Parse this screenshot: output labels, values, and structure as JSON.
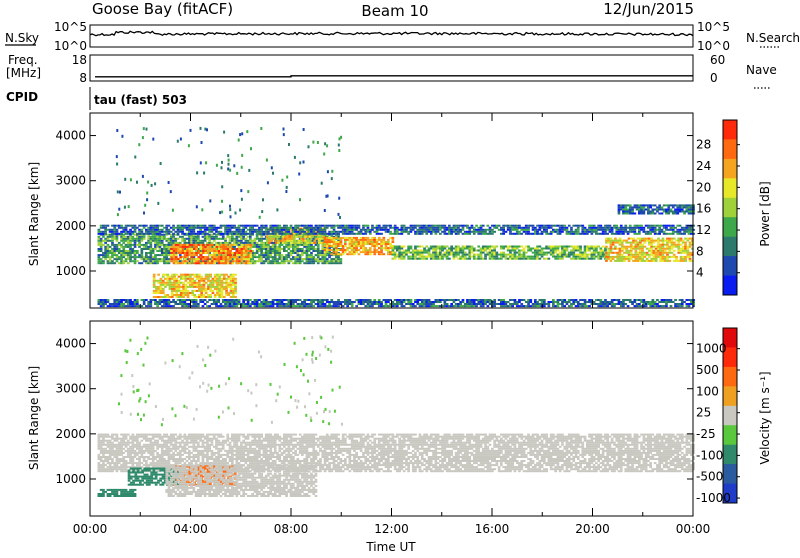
{
  "header": {
    "site": "Goose Bay (fitACF)",
    "beam": "Beam 10",
    "date": "12/Jun/2015"
  },
  "chart_data": [
    {
      "type": "line",
      "name": "sky-noise-panel",
      "left_label": "N.Sky",
      "right_label": "N.Search",
      "left_ticks": [
        "10^5",
        "10^0"
      ],
      "right_ticks": [
        "10^5",
        "10^0"
      ],
      "series": [
        {
          "name": "N.Sky",
          "style": "solid"
        },
        {
          "name": "N.Search",
          "style": "dotted"
        }
      ]
    },
    {
      "type": "line",
      "name": "freq-nave-panel",
      "left_label": "Freq.",
      "left_unit": "[MHz]",
      "right_label": "Nave",
      "left_ticks": [
        "18",
        "8"
      ],
      "right_ticks": [
        "60",
        "0"
      ],
      "freq_value_mhz": 10
    },
    {
      "type": "text",
      "name": "cpid-panel",
      "label": "CPID",
      "value": "tau (fast) 503"
    },
    {
      "type": "heatmap",
      "name": "power-panel",
      "ylabel": "Slant Range [km]",
      "ylim": [
        180,
        4500
      ],
      "yticks": [
        "4000",
        "3000",
        "2000",
        "1000"
      ],
      "xlim_hours": [
        0,
        24
      ],
      "colorbar": {
        "label": "Power [dB]",
        "ticks": [
          "28",
          "24",
          "20",
          "16",
          "12",
          "8",
          "4"
        ],
        "colors": [
          "#0a1df0",
          "#1e4ab0",
          "#2c7a6c",
          "#3da84a",
          "#9fd23a",
          "#e8e82a",
          "#f4a41e",
          "#ff6a10",
          "#ff2a0a"
        ]
      },
      "features": [
        {
          "t0": 0.3,
          "t1": 10.0,
          "r0": 1150,
          "r1": 1800,
          "value": 12
        },
        {
          "t0": 3.2,
          "t1": 6.4,
          "r0": 1150,
          "r1": 1600,
          "value": 24
        },
        {
          "t0": 7.0,
          "t1": 9.3,
          "r0": 1600,
          "r1": 1950,
          "value": 20
        },
        {
          "t0": 9.3,
          "t1": 12.0,
          "r0": 1350,
          "r1": 1750,
          "value": 22
        },
        {
          "t0": 12.0,
          "t1": 20.5,
          "r0": 1250,
          "r1": 1550,
          "value": 14
        },
        {
          "t0": 20.5,
          "t1": 24.0,
          "r0": 1200,
          "r1": 1700,
          "value": 20
        },
        {
          "t0": 0.3,
          "t1": 24.0,
          "r0": 1800,
          "r1": 2000,
          "value": 8
        },
        {
          "t0": 2.5,
          "t1": 5.8,
          "r0": 400,
          "r1": 900,
          "value": 20
        },
        {
          "t0": 0.3,
          "t1": 24.0,
          "r0": 200,
          "r1": 380,
          "value": 8
        },
        {
          "t0": 21.0,
          "t1": 24.0,
          "r0": 2250,
          "r1": 2450,
          "value": 8
        }
      ]
    },
    {
      "type": "heatmap",
      "name": "velocity-panel",
      "ylabel": "Slant Range [km]",
      "ylim": [
        180,
        4500
      ],
      "yticks": [
        "4000",
        "3000",
        "2000",
        "1000"
      ],
      "xlim_hours": [
        0,
        24
      ],
      "xticks": [
        "00:00",
        "04:00",
        "08:00",
        "12:00",
        "16:00",
        "20:00",
        "00:00"
      ],
      "xlabel": "Time UT",
      "colorbar": {
        "label": "Velocity [m s⁻¹]",
        "ticks": [
          "1000",
          "500",
          "100",
          "25",
          "-25",
          "-100",
          "-500",
          "-1000"
        ],
        "colors": [
          "#1e3cc8",
          "#2a5aa0",
          "#2e8a6a",
          "#5ac83c",
          "#c8c8c0",
          "#f0a020",
          "#ff6a10",
          "#ff2a0a",
          "#e00a0a"
        ]
      },
      "features": [
        {
          "t0": 0.3,
          "t1": 24.0,
          "r0": 1150,
          "r1": 2000,
          "value": 0
        },
        {
          "t0": 3.3,
          "t1": 5.8,
          "r0": 850,
          "r1": 1300,
          "value": -300
        },
        {
          "t0": 1.5,
          "t1": 3.5,
          "r0": 850,
          "r1": 1250,
          "value": 150
        },
        {
          "t0": 0.3,
          "t1": 1.8,
          "r0": 600,
          "r1": 750,
          "value": 150
        },
        {
          "t0": 3.0,
          "t1": 9.0,
          "r0": 600,
          "r1": 1300,
          "value": 0
        }
      ]
    }
  ]
}
